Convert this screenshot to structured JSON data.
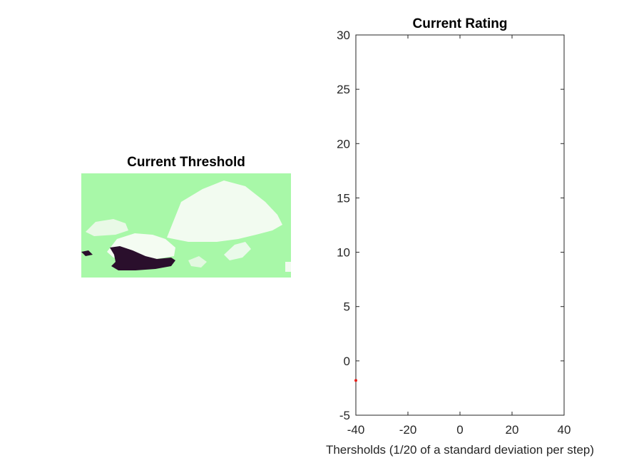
{
  "threshold_panel": {
    "title": "Current Threshold",
    "colors": {
      "background": "#a8f8a8",
      "highlight": "#f2fbf0",
      "dark_region": "#2a0f2c"
    }
  },
  "chart_data": {
    "type": "scatter",
    "title": "Current Rating",
    "xlabel": "Thersholds (1/20 of a standard deviation per step)",
    "ylabel": "",
    "xlim": [
      -40,
      40
    ],
    "ylim": [
      -5,
      30
    ],
    "xticks": [
      -40,
      -20,
      0,
      20,
      40
    ],
    "yticks": [
      -5,
      0,
      5,
      10,
      15,
      20,
      25,
      30
    ],
    "grid": false,
    "series": [
      {
        "x": [
          -40
        ],
        "y": [
          -1.8
        ],
        "color": "#e8201a",
        "marker": "point"
      }
    ]
  }
}
